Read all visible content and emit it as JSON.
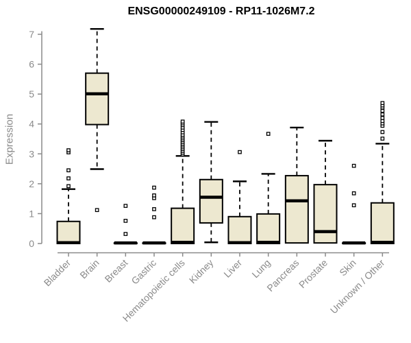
{
  "title": "ENSG00000249109 - RP11-1026M7.2",
  "chart_data": {
    "type": "boxplot",
    "title": "ENSG00000249109 - RP11-1026M7.2",
    "xlabel": "",
    "ylabel": "Expression",
    "ylim": [
      0,
      7
    ],
    "yticks": [
      0,
      1,
      2,
      3,
      4,
      5,
      6,
      7
    ],
    "grid": false,
    "legend": "none",
    "categories": [
      "Bladder",
      "Brain",
      "Breast",
      "Gastric",
      "Hematopoietic cells",
      "Kidney",
      "Liver",
      "Lung",
      "Pancreas",
      "Prostate",
      "Skin",
      "Unknown / Other"
    ],
    "boxes": [
      {
        "label": "Bladder",
        "q1": 0,
        "median": 0.03,
        "q3": 0.74,
        "whisker_low": 0,
        "whisker_high": 1.82,
        "outliers": [
          1.92,
          2.18,
          2.45,
          3.05,
          3.12
        ]
      },
      {
        "label": "Brain",
        "q1": 3.98,
        "median": 5.01,
        "q3": 5.7,
        "whisker_low": 2.49,
        "whisker_high": 7.18,
        "outliers": [
          1.12
        ]
      },
      {
        "label": "Breast",
        "q1": 0,
        "median": 0.02,
        "q3": 0.02,
        "whisker_low": 0,
        "whisker_high": 0.02,
        "outliers": [
          0.32,
          0.76,
          1.26
        ]
      },
      {
        "label": "Gastric",
        "q1": 0,
        "median": 0.02,
        "q3": 0.02,
        "whisker_low": 0,
        "whisker_high": 0.02,
        "outliers": [
          0.88,
          1.15,
          1.52,
          1.61,
          1.87
        ]
      },
      {
        "label": "Hematopoietic cells",
        "q1": 0,
        "median": 0.04,
        "q3": 1.18,
        "whisker_low": 0,
        "whisker_high": 2.93,
        "outliers": [
          2.98,
          3.04,
          3.1,
          3.16,
          3.22,
          3.28,
          3.34,
          3.4,
          3.46,
          3.52,
          3.58,
          3.64,
          3.72,
          3.8,
          3.88,
          3.96,
          4.02,
          4.08
        ]
      },
      {
        "label": "Kidney",
        "q1": 0.69,
        "median": 1.55,
        "q3": 2.14,
        "whisker_low": 0.04,
        "whisker_high": 4.07,
        "outliers": []
      },
      {
        "label": "Liver",
        "q1": 0,
        "median": 0.03,
        "q3": 0.9,
        "whisker_low": 0,
        "whisker_high": 2.08,
        "outliers": [
          3.06
        ]
      },
      {
        "label": "Lung",
        "q1": 0,
        "median": 0.04,
        "q3": 0.99,
        "whisker_low": 0,
        "whisker_high": 2.33,
        "outliers": [
          3.67
        ]
      },
      {
        "label": "Pancreas",
        "q1": 0.02,
        "median": 1.43,
        "q3": 2.27,
        "whisker_low": 0.02,
        "whisker_high": 3.88,
        "outliers": []
      },
      {
        "label": "Prostate",
        "q1": 0.02,
        "median": 0.4,
        "q3": 1.97,
        "whisker_low": 0.02,
        "whisker_high": 3.44,
        "outliers": []
      },
      {
        "label": "Skin",
        "q1": 0,
        "median": 0.02,
        "q3": 0.02,
        "whisker_low": 0,
        "whisker_high": 0.02,
        "outliers": [
          1.28,
          1.68,
          2.6
        ]
      },
      {
        "label": "Unknown / Other",
        "q1": 0,
        "median": 0.04,
        "q3": 1.36,
        "whisker_low": 0,
        "whisker_high": 3.34,
        "outliers": [
          3.51,
          3.73,
          3.94,
          4.02,
          4.1,
          4.2,
          4.32,
          4.44,
          4.55,
          4.62,
          4.7
        ]
      }
    ],
    "colors": {
      "box_fill": "#EDE8D0",
      "box_border": "#000000",
      "median": "#000000",
      "whisker": "#000000",
      "outlier": "#000000",
      "axis": "#8a8a8a",
      "title": "#000000",
      "background": "#ffffff"
    }
  }
}
